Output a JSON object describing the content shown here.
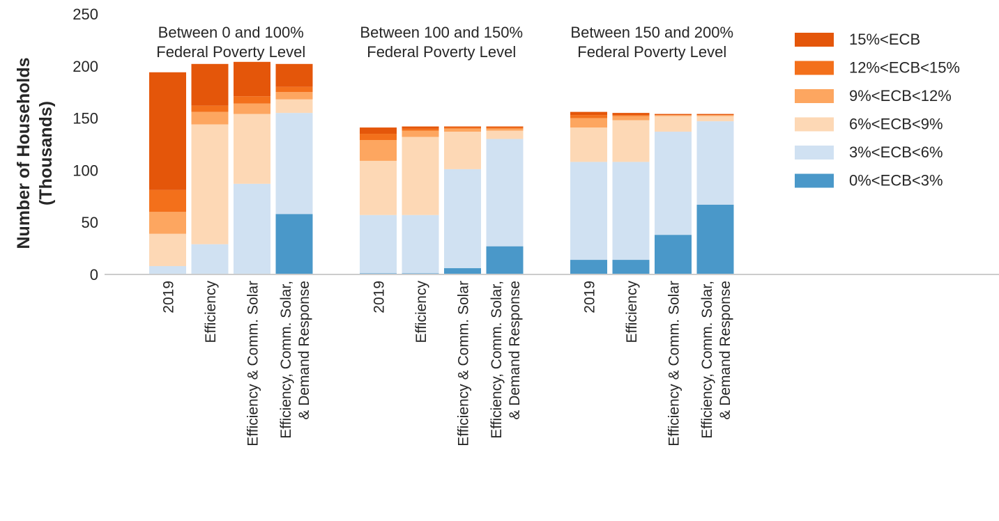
{
  "chart_data": {
    "type": "bar",
    "stacked": true,
    "ylabel": [
      "Number of Households",
      "(Thousands)"
    ],
    "ylim": [
      0,
      250
    ],
    "yticks": [
      0,
      50,
      100,
      150,
      200,
      250
    ],
    "grid": false,
    "legend_position": "top-right",
    "groups": [
      {
        "title": [
          "Between 0 and 100%",
          "Federal Poverty Level"
        ],
        "categories": [
          [
            "2019"
          ],
          [
            "Efficiency"
          ],
          [
            "Efficiency & Comm. Solar"
          ],
          [
            "Efficiency, Comm. Solar,",
            "& Demand Response"
          ]
        ]
      },
      {
        "title": [
          "Between 100 and 150%",
          "Federal Poverty Level"
        ],
        "categories": [
          [
            "2019"
          ],
          [
            "Efficiency"
          ],
          [
            "Efficiency & Comm. Solar"
          ],
          [
            "Efficiency, Comm. Solar,",
            "& Demand Response"
          ]
        ]
      },
      {
        "title": [
          "Between 150 and 200%",
          "Federal Poverty Level"
        ],
        "categories": [
          [
            "2019"
          ],
          [
            "Efficiency"
          ],
          [
            "Efficiency & Comm. Solar"
          ],
          [
            "Efficiency, Comm. Solar,",
            "& Demand Response"
          ]
        ]
      }
    ],
    "series": [
      {
        "name": "0%<ECB<3%",
        "color": "#4a98c9",
        "values": [
          0,
          0,
          0,
          58,
          1,
          1,
          6,
          27,
          14,
          14,
          38,
          67
        ]
      },
      {
        "name": "3%<ECB<6%",
        "color": "#d0e1f2",
        "values": [
          8,
          29,
          87,
          97,
          56,
          56,
          95,
          103,
          94,
          94,
          99,
          80
        ]
      },
      {
        "name": "6%<ECB<9%",
        "color": "#fdd8b5",
        "values": [
          31,
          115,
          67,
          13,
          52,
          75,
          36,
          8,
          33,
          40,
          15,
          5
        ]
      },
      {
        "name": "9%<ECB<12%",
        "color": "#fda660",
        "values": [
          21,
          12,
          10,
          7,
          20,
          6,
          3,
          2,
          9,
          4,
          1,
          1
        ]
      },
      {
        "name": "12%<ECB<15%",
        "color": "#f3701b",
        "values": [
          21,
          6,
          7,
          5,
          6,
          2,
          1,
          1,
          3,
          1,
          0,
          0
        ]
      },
      {
        "name": "15%<ECB",
        "color": "#e4560a",
        "values": [
          113,
          40,
          33,
          22,
          6,
          2,
          1,
          1,
          3,
          2,
          1,
          1
        ]
      }
    ]
  }
}
